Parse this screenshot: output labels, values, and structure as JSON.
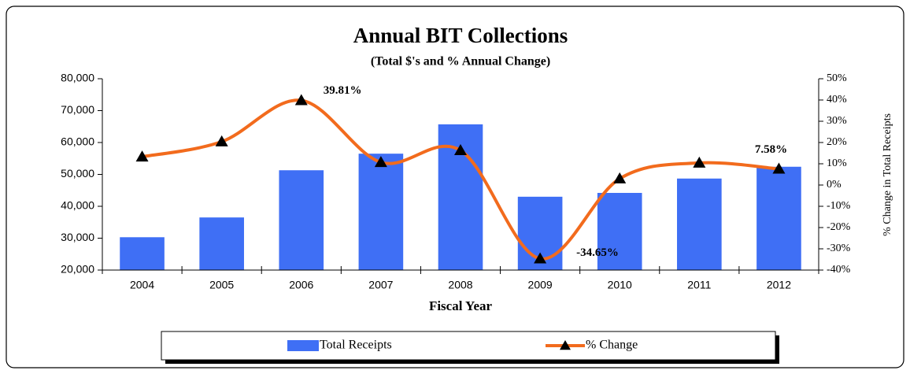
{
  "chart_data": {
    "type": "bar-line",
    "title": "Annual BIT Collections",
    "subtitle": "(Total $'s and % Annual Change)",
    "x_label": "Fiscal Year",
    "y2_label": "% Change in Total Receipts",
    "categories": [
      "2004",
      "2005",
      "2006",
      "2007",
      "2008",
      "2009",
      "2010",
      "2011",
      "2012"
    ],
    "series": [
      {
        "name": "Total Receipts",
        "type": "bar",
        "color": "#3f6ff5",
        "axis": "y",
        "values": [
          30300,
          36500,
          51300,
          56500,
          65700,
          43000,
          44200,
          48700,
          52400
        ]
      },
      {
        "name": "% Change",
        "type": "line",
        "color": "#f26b1d",
        "marker_color": "#000000",
        "axis": "y2",
        "values": [
          13.3,
          20.4,
          39.81,
          10.7,
          16.3,
          -34.65,
          3.0,
          10.4,
          7.58
        ],
        "value_labels": [
          null,
          null,
          "39.81%",
          null,
          null,
          "-34.65%",
          null,
          null,
          "7.58%"
        ]
      }
    ],
    "ylim": [
      20000,
      80000
    ],
    "yticks": [
      {
        "value": 20000,
        "label": "20,000"
      },
      {
        "value": 30000,
        "label": "30,000"
      },
      {
        "value": 40000,
        "label": "40,000"
      },
      {
        "value": 50000,
        "label": "50,000"
      },
      {
        "value": 60000,
        "label": "60,000"
      },
      {
        "value": 70000,
        "label": "70,000"
      },
      {
        "value": 80000,
        "label": "80,000"
      }
    ],
    "y2lim": [
      -40,
      50
    ],
    "y2ticks": [
      {
        "value": -40,
        "label": "-40%"
      },
      {
        "value": -30,
        "label": "-30%"
      },
      {
        "value": -20,
        "label": "-20%"
      },
      {
        "value": -10,
        "label": "-10%"
      },
      {
        "value": 0,
        "label": "0%"
      },
      {
        "value": 10,
        "label": "10%"
      },
      {
        "value": 20,
        "label": "20%"
      },
      {
        "value": 30,
        "label": "30%"
      },
      {
        "value": 40,
        "label": "40%"
      },
      {
        "value": 50,
        "label": "50%"
      }
    ],
    "legend": "bottom"
  }
}
